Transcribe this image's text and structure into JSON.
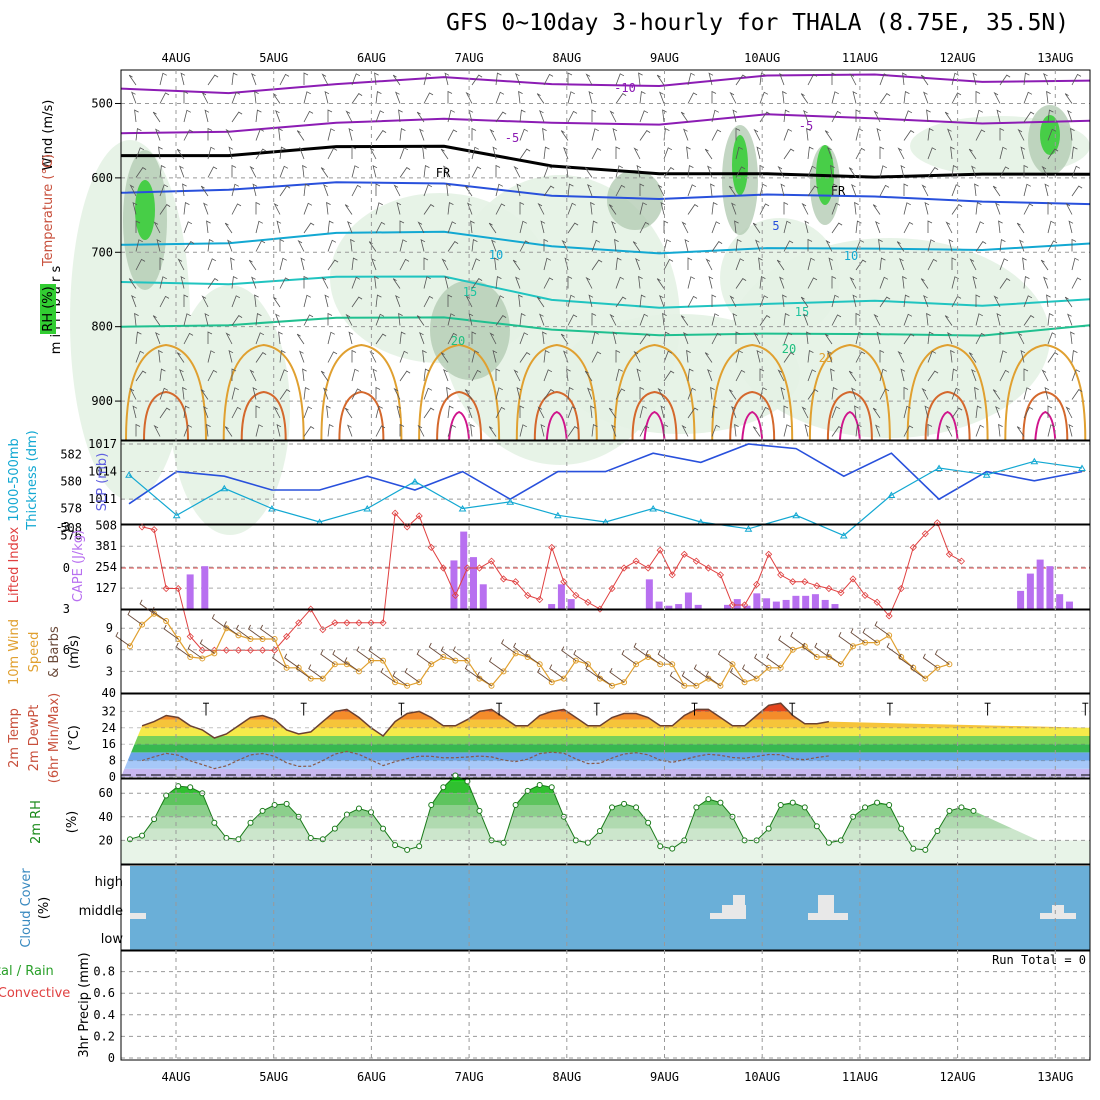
{
  "title": "GFS 0~10day 3-hourly for THALA (8.75E, 35.5N)",
  "dates": [
    "4AUG",
    "5AUG",
    "6AUG",
    "7AUG",
    "8AUG",
    "9AUG",
    "10AUG",
    "11AUG",
    "12AUG",
    "13AUG"
  ],
  "colors": {
    "purple": "#8c1cb4",
    "blue": "#2850dc",
    "cyan": "#12a8d2",
    "teal": "#20c4c0",
    "green": "#20c090",
    "orange": "#e0a030",
    "red": "#e04040",
    "magenta": "#d0148c",
    "violet": "#b870f0",
    "rhgreen": "#32cd32",
    "cloud": "#6aafd8"
  },
  "chart_data": [
    {
      "panel": "upper-air",
      "type": "contour",
      "ylabel": "m i l l i b a r s",
      "yticks": [
        500,
        600,
        700,
        800,
        900
      ],
      "legend": {
        "wind": "Wind",
        "wind_unit": "(m/s)",
        "temp": "Temperature",
        "temp_unit": "(°C)",
        "rh": "RH (%)"
      },
      "contour_labels": [
        {
          "text": "-10",
          "color": "#8c1cb4"
        },
        {
          "text": "-5",
          "color": "#8c1cb4"
        },
        {
          "text": "-5",
          "color": "#8c1cb4"
        },
        {
          "text": "FR",
          "color": "#000000"
        },
        {
          "text": "FR",
          "color": "#000000"
        },
        {
          "text": "5",
          "color": "#2850dc"
        },
        {
          "text": "10",
          "color": "#12a8d2"
        },
        {
          "text": "10",
          "color": "#12a8d2"
        },
        {
          "text": "15",
          "color": "#20c4a0"
        },
        {
          "text": "15",
          "color": "#20c4a0"
        },
        {
          "text": "20",
          "color": "#20c080"
        },
        {
          "text": "20",
          "color": "#20c080"
        },
        {
          "text": "25",
          "color": "#e0a030"
        }
      ],
      "isotherms": [
        {
          "level": -10,
          "pressure": [
            480,
            478,
            476,
            472,
            470,
            470,
            468,
            466,
            464,
            466
          ]
        },
        {
          "level": -5,
          "pressure": [
            540,
            530,
            528,
            528,
            522,
            522,
            520,
            525,
            520,
            520
          ]
        },
        {
          "level": 0,
          "pressure": [
            570,
            562,
            560,
            565,
            580,
            588,
            600,
            604,
            588,
            592
          ]
        },
        {
          "level": 5,
          "pressure": [
            620,
            608,
            608,
            615,
            620,
            622,
            628,
            630,
            625,
            632
          ]
        },
        {
          "level": 10,
          "pressure": [
            690,
            680,
            676,
            680,
            688,
            695,
            700,
            700,
            690,
            685
          ]
        },
        {
          "level": 15,
          "pressure": [
            740,
            735,
            735,
            740,
            760,
            768,
            775,
            770,
            765,
            760
          ]
        },
        {
          "level": 20,
          "pressure": [
            800,
            790,
            790,
            795,
            800,
            805,
            815,
            815,
            805,
            795
          ]
        }
      ]
    },
    {
      "panel": "thickness-slp",
      "type": "line",
      "ylabel_left": "1000-500mb",
      "ylabel_left2": "Thickness (dm)",
      "ylabel_right": "SLP (mb)",
      "yticks_left": [
        576,
        578,
        580,
        582
      ],
      "yticks_right": [
        1011,
        1014,
        1017
      ],
      "bottom_tick": "508",
      "x": [
        0,
        0.5,
        1,
        1.5,
        2,
        2.5,
        3,
        3.5,
        4,
        4.5,
        5,
        5.5,
        6,
        6.5,
        7,
        7.5,
        8,
        8.5,
        9,
        9.5,
        10
      ],
      "series": [
        {
          "name": "SLP",
          "values": [
            1010.5,
            1014,
            1013.5,
            1012,
            1012,
            1013.5,
            1012,
            1014,
            1011,
            1014,
            1014,
            1016,
            1015,
            1017,
            1016.5,
            1013.5,
            1016,
            1011,
            1014,
            1013,
            1014
          ]
        },
        {
          "name": "Thickness",
          "values": [
            580.5,
            577.5,
            579.5,
            578,
            577,
            578,
            580,
            578,
            578.5,
            577.5,
            577,
            578,
            577,
            576.5,
            577.5,
            576,
            579,
            581,
            580.5,
            581.5,
            581
          ]
        }
      ]
    },
    {
      "panel": "instability",
      "type": "bar",
      "ylabel_left": "Lifted Index",
      "ylabel_right": "CAPE (J/kg)",
      "yticks_left": [
        "-3",
        "0",
        "3",
        "6"
      ],
      "yticks_right": [
        127,
        254,
        381,
        508
      ],
      "cape_bars": [
        {
          "day": 0.15,
          "value": 210
        },
        {
          "day": 0.3,
          "value": 260
        },
        {
          "day": 2.85,
          "value": 295
        },
        {
          "day": 2.95,
          "value": 470
        },
        {
          "day": 3.05,
          "value": 315
        },
        {
          "day": 3.15,
          "value": 150
        },
        {
          "day": 3.85,
          "value": 30
        },
        {
          "day": 3.95,
          "value": 150
        },
        {
          "day": 4.05,
          "value": 60
        },
        {
          "day": 4.85,
          "value": 180
        },
        {
          "day": 4.95,
          "value": 45
        },
        {
          "day": 5.05,
          "value": 20
        },
        {
          "day": 5.15,
          "value": 30
        },
        {
          "day": 5.25,
          "value": 100
        },
        {
          "day": 5.35,
          "value": 25
        },
        {
          "day": 5.65,
          "value": 25
        },
        {
          "day": 5.75,
          "value": 60
        },
        {
          "day": 5.85,
          "value": 20
        },
        {
          "day": 5.95,
          "value": 95
        },
        {
          "day": 6.05,
          "value": 65
        },
        {
          "day": 6.15,
          "value": 45
        },
        {
          "day": 6.25,
          "value": 55
        },
        {
          "day": 6.35,
          "value": 80
        },
        {
          "day": 6.45,
          "value": 80
        },
        {
          "day": 6.55,
          "value": 90
        },
        {
          "day": 6.65,
          "value": 55
        },
        {
          "day": 6.75,
          "value": 30
        },
        {
          "day": 8.65,
          "value": 110
        },
        {
          "day": 8.75,
          "value": 215
        },
        {
          "day": 8.85,
          "value": 300
        },
        {
          "day": 8.95,
          "value": 260
        },
        {
          "day": 9.05,
          "value": 90
        },
        {
          "day": 9.15,
          "value": 45
        }
      ],
      "li_values": [
        -3,
        -2.8,
        1.5,
        1.5,
        5,
        6,
        6,
        6,
        6,
        6,
        6,
        6,
        5,
        4,
        3,
        4.5,
        4,
        4,
        4,
        4,
        4,
        -4,
        -3,
        -3.8,
        -1.5,
        0,
        2,
        0,
        0,
        -0.5,
        0.8,
        1,
        2,
        2.3,
        -1.5,
        1,
        2,
        2.5,
        3,
        1.5,
        0,
        -0.5,
        0,
        -1.3,
        0.5,
        -1,
        -0.5,
        0,
        0.5,
        2.7,
        2.7,
        1.2,
        -1,
        0.5,
        1,
        1,
        1.3,
        1.5,
        1.8,
        0.8,
        2,
        2.5,
        3.5,
        1.5,
        -1.5,
        -2.5,
        -3.3,
        -1,
        -0.5
      ]
    },
    {
      "panel": "wind10m",
      "type": "line",
      "ylabel": "10m Wind",
      "ylabel2": "Speed",
      "ylabel3": "& Barbs",
      "unit": "(m/s)",
      "yticks": [
        3,
        6,
        9
      ],
      "values": [
        6.5,
        9.5,
        11,
        10,
        7.5,
        5,
        4.8,
        5.5,
        9,
        8,
        7.5,
        7.5,
        7.5,
        3.5,
        3.5,
        2,
        2,
        4,
        4,
        3,
        4.5,
        4.5,
        1.5,
        1,
        1.5,
        4,
        5,
        4.5,
        4.5,
        2,
        1,
        3,
        5.5,
        5,
        4,
        1.5,
        2,
        4.5,
        4,
        2,
        1,
        1.5,
        4,
        5,
        4,
        4,
        1,
        1,
        2,
        1,
        4,
        1.5,
        2,
        3.5,
        3.5,
        6,
        6.5,
        5,
        5,
        4,
        6.5,
        7,
        7,
        8,
        5,
        3.5,
        2,
        3.5,
        4
      ]
    },
    {
      "panel": "temperature",
      "type": "area",
      "ylabel": "2m Temp",
      "ylabel2": "2m DewPt",
      "ylabel3": "(6hr Min/Max)",
      "unit": "(°C)",
      "yticks": [
        0,
        8,
        16,
        24,
        32
      ],
      "top_tick": "40",
      "bottom_tick": "0",
      "temp_values": [
        25,
        27,
        30,
        29,
        25,
        23,
        19,
        21,
        25,
        29,
        30,
        28,
        23,
        21,
        22,
        27,
        32,
        33,
        29,
        24,
        20,
        27,
        31,
        32,
        29,
        25,
        25,
        28,
        32,
        33,
        29,
        25,
        25,
        30,
        32,
        33,
        29,
        25,
        25,
        29,
        31,
        31,
        29,
        25,
        25,
        30,
        33,
        33,
        29,
        25,
        25,
        30,
        35,
        36,
        30,
        26,
        26,
        27
      ]
    },
    {
      "panel": "rh2m",
      "type": "area",
      "ylabel": "2m RH",
      "unit": "(%)",
      "yticks": [
        20,
        40,
        60
      ],
      "values": [
        21,
        24,
        38,
        58,
        66,
        65,
        60,
        35,
        22,
        21,
        35,
        45,
        50,
        51,
        40,
        22,
        21,
        30,
        42,
        47,
        44,
        30,
        16,
        12,
        15,
        50,
        65,
        75,
        70,
        45,
        20,
        18,
        50,
        62,
        67,
        65,
        40,
        20,
        18,
        28,
        48,
        51,
        48,
        35,
        15,
        13,
        20,
        48,
        55,
        52,
        40,
        20,
        20,
        30,
        50,
        52,
        48,
        32,
        18,
        20,
        40,
        48,
        52,
        50,
        30,
        13,
        12,
        28,
        45,
        48,
        45
      ]
    },
    {
      "panel": "cloud",
      "type": "bar",
      "ylabel": "Cloud Cover",
      "unit": "(%)",
      "levels": [
        "high",
        "middle",
        "low"
      ]
    },
    {
      "panel": "precip",
      "type": "bar",
      "ylabel": "3hr Precip (mm)",
      "legend": {
        "total": "Total / Rain",
        "convective": "Convective"
      },
      "run_total": "Run Total = 0",
      "yticks": [
        "0",
        "0.2",
        "0.4",
        "0.6",
        "0.8"
      ]
    }
  ]
}
